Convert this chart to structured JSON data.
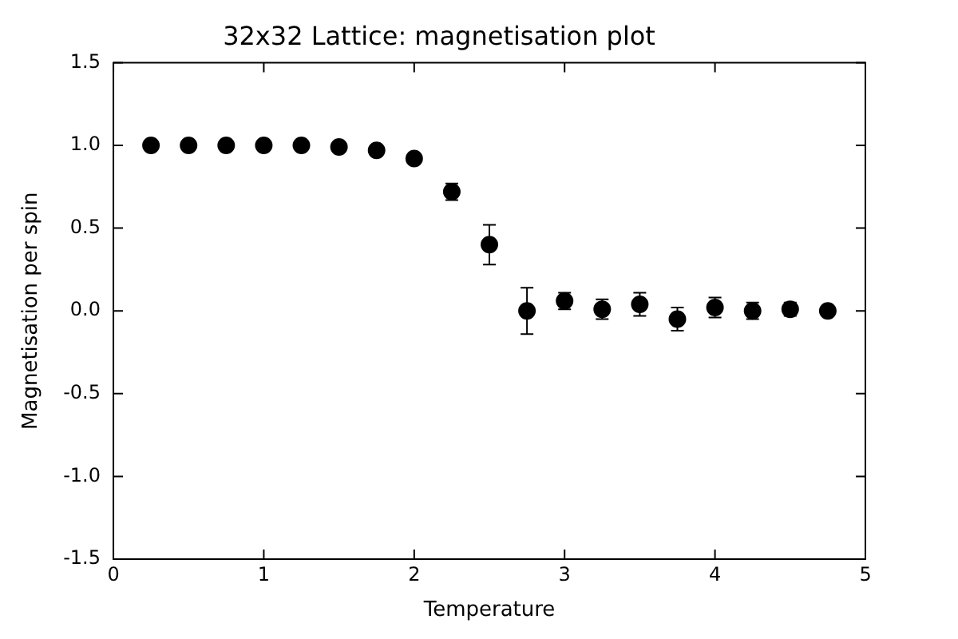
{
  "chart_data": {
    "type": "scatter",
    "title": "32x32 Lattice: magnetisation plot",
    "xlabel": "Temperature",
    "ylabel": "Magnetisation per spin",
    "x": [
      0.25,
      0.5,
      0.75,
      1.0,
      1.25,
      1.5,
      1.75,
      2.0,
      2.25,
      2.5,
      2.75,
      3.0,
      3.25,
      3.5,
      3.75,
      4.0,
      4.25,
      4.5,
      4.75
    ],
    "series": [
      {
        "color": "#000000",
        "values": [
          1.0,
          1.0,
          1.0,
          1.0,
          1.0,
          0.99,
          0.97,
          0.92,
          0.72,
          0.4,
          0.0,
          0.06,
          0.01,
          0.04,
          -0.05,
          0.02,
          0.0,
          0.01,
          0.0
        ],
        "errors": [
          null,
          null,
          null,
          null,
          null,
          null,
          null,
          null,
          0.05,
          0.12,
          0.14,
          0.05,
          0.06,
          0.07,
          0.07,
          0.06,
          0.05,
          0.04,
          0.03
        ]
      }
    ],
    "marker": "circle",
    "xlim": [
      0,
      5
    ],
    "xticks": [
      0,
      1,
      2,
      3,
      4,
      5
    ],
    "ylim": [
      -1.5,
      1.5
    ],
    "yticks": [
      -1.5,
      {
        "value": -1,
        "label": "-1.0"
      },
      -0.5,
      {
        "value": 0,
        "label": "0.0"
      },
      0.5,
      {
        "value": 1,
        "label": "1.0"
      },
      1.5
    ],
    "grid": false,
    "legend": false
  }
}
